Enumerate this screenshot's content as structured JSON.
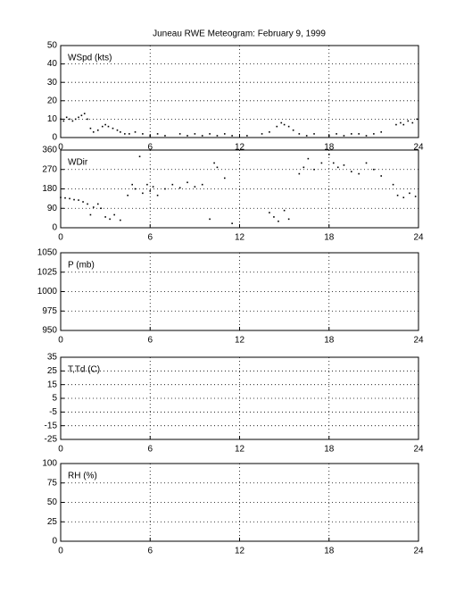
{
  "chart_data": [
    {
      "type": "scatter",
      "title": "Juneau RWE Meteogram:  February  9, 1999",
      "ylabel": "WSpd (kts)",
      "color": "#000000",
      "x": [
        0,
        0.2,
        0.4,
        0.6,
        0.8,
        1.0,
        1.2,
        1.4,
        1.6,
        1.8,
        2.0,
        2.2,
        2.5,
        2.8,
        3.0,
        3.2,
        3.5,
        3.8,
        4.0,
        4.3,
        4.6,
        5.0,
        5.5,
        6.0,
        6.5,
        7.0,
        8.0,
        8.5,
        9.0,
        9.5,
        10,
        10.5,
        11,
        11.5,
        12.5,
        13.5,
        14,
        14.5,
        14.8,
        15,
        15.3,
        15.6,
        16,
        16.5,
        17,
        18,
        18.5,
        19,
        19.5,
        20,
        20.5,
        21,
        21.5,
        22.5,
        22.8,
        23,
        23.3,
        23.6,
        23.9
      ],
      "values": [
        10,
        9,
        11,
        10,
        9,
        10,
        11,
        12,
        13,
        10,
        5,
        3,
        4,
        6,
        7,
        6,
        5,
        4,
        3,
        2,
        2,
        3,
        2,
        1,
        2,
        1,
        2,
        1,
        2,
        1,
        2,
        1,
        2,
        1,
        1,
        2,
        3,
        6,
        8,
        7,
        6,
        4,
        2,
        1,
        2,
        1,
        2,
        1,
        2,
        2,
        1,
        2,
        3,
        7,
        8,
        7,
        9,
        8,
        10
      ],
      "xlim": [
        0,
        24
      ],
      "xticks": [
        0,
        6,
        12,
        18,
        24
      ],
      "ylim": [
        0,
        50
      ],
      "yticks": [
        0,
        10,
        20,
        30,
        40,
        50
      ],
      "grid": true
    },
    {
      "type": "scatter",
      "ylabel": "WDir",
      "color": "#000000",
      "x": [
        0,
        0.3,
        0.6,
        0.9,
        1.2,
        1.5,
        1.8,
        2.0,
        2.2,
        2.5,
        2.7,
        3,
        3.3,
        3.6,
        4,
        4.5,
        4.8,
        5,
        5.3,
        5.5,
        5.8,
        6,
        6.2,
        6.5,
        7,
        7.5,
        8,
        8.5,
        9,
        9.5,
        10,
        10.3,
        10.5,
        11,
        11.5,
        14,
        14.3,
        14.6,
        15,
        15.3,
        16,
        16.3,
        16.6,
        17,
        17.5,
        18,
        18.3,
        18.6,
        19,
        19.5,
        20,
        20.5,
        21,
        21.5,
        22.3,
        22.6,
        23,
        23.4,
        23.8
      ],
      "values": [
        140,
        138,
        135,
        130,
        128,
        120,
        110,
        60,
        95,
        110,
        90,
        50,
        40,
        60,
        35,
        150,
        200,
        180,
        330,
        160,
        200,
        170,
        190,
        150,
        180,
        200,
        185,
        210,
        190,
        200,
        40,
        300,
        280,
        230,
        20,
        70,
        50,
        30,
        80,
        40,
        250,
        280,
        320,
        270,
        300,
        340,
        300,
        280,
        290,
        260,
        250,
        300,
        270,
        240,
        200,
        150,
        140,
        160,
        145
      ],
      "xlim": [
        0,
        24
      ],
      "xticks": [
        0,
        6,
        12,
        18,
        24
      ],
      "ylim": [
        0,
        360
      ],
      "yticks": [
        0,
        90,
        180,
        270,
        360
      ],
      "grid": true
    },
    {
      "type": "scatter",
      "ylabel": "P (mb)",
      "xlim": [
        0,
        24
      ],
      "xticks": [
        0,
        6,
        12,
        18,
        24
      ],
      "ylim": [
        950,
        1050
      ],
      "yticks": [
        950,
        975,
        1000,
        1025,
        1050
      ],
      "grid": true
    },
    {
      "type": "scatter",
      "ylabel": "T,Td (C)",
      "xlim": [
        0,
        24
      ],
      "xticks": [
        0,
        6,
        12,
        18,
        24
      ],
      "ylim": [
        -25,
        35
      ],
      "yticks": [
        -25,
        -15,
        -5,
        5,
        15,
        25,
        35
      ],
      "grid": true
    },
    {
      "type": "scatter",
      "ylabel": "RH (%)",
      "xlim": [
        0,
        24
      ],
      "xticks": [
        0,
        6,
        12,
        18,
        24
      ],
      "ylim": [
        0,
        100
      ],
      "yticks": [
        0,
        25,
        50,
        75,
        100
      ],
      "grid": true
    }
  ]
}
